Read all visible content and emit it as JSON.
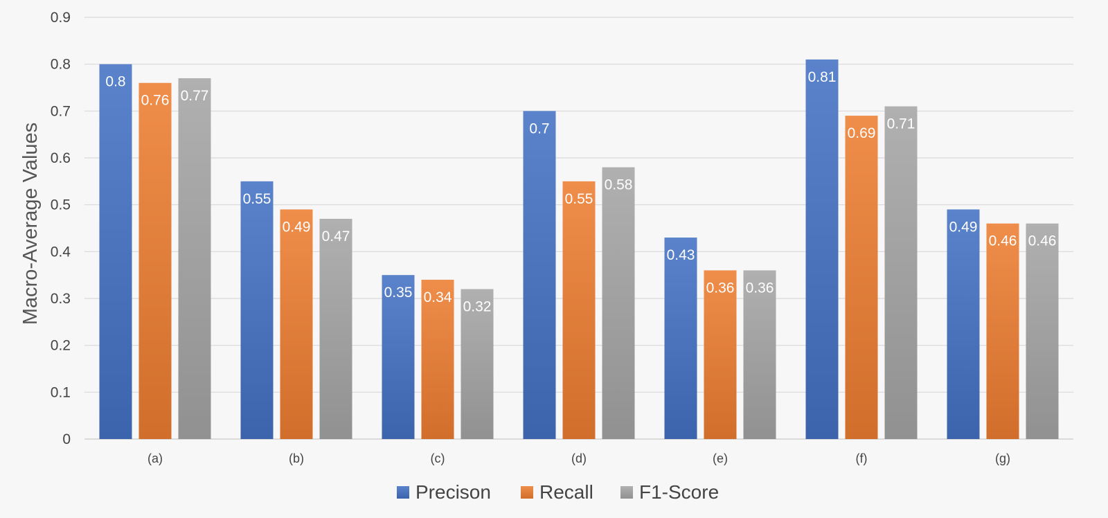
{
  "chart_data": {
    "type": "bar",
    "title": "",
    "xlabel": "",
    "ylabel": "Macro-Average Values",
    "ylim": [
      0,
      0.9
    ],
    "yticks": [
      "0",
      "0.1",
      "0.2",
      "0.3",
      "0.4",
      "0.5",
      "0.6",
      "0.7",
      "0.8",
      "0.9"
    ],
    "categories": [
      "(a)",
      "(b)",
      "(c)",
      "(d)",
      "(e)",
      "(f)",
      "(g)"
    ],
    "series": [
      {
        "name": "Precison",
        "color": "#4472c4",
        "values": [
          0.8,
          0.55,
          0.35,
          0.7,
          0.43,
          0.81,
          0.49
        ],
        "labels": [
          "0.8",
          "0.55",
          "0.35",
          "0.7",
          "0.43",
          "0.81",
          "0.49"
        ]
      },
      {
        "name": "Recall",
        "color": "#ed7d31",
        "values": [
          0.76,
          0.49,
          0.34,
          0.55,
          0.36,
          0.69,
          0.46
        ],
        "labels": [
          "0.76",
          "0.49",
          "0.34",
          "0.55",
          "0.36",
          "0.69",
          "0.46"
        ]
      },
      {
        "name": "F1-Score",
        "color": "#a5a5a5",
        "values": [
          0.77,
          0.47,
          0.32,
          0.58,
          0.36,
          0.71,
          0.46
        ],
        "labels": [
          "0.77",
          "0.47",
          "0.32",
          "0.58",
          "0.36",
          "0.71",
          "0.46"
        ]
      }
    ],
    "grid": true,
    "legend_position": "bottom-center"
  }
}
